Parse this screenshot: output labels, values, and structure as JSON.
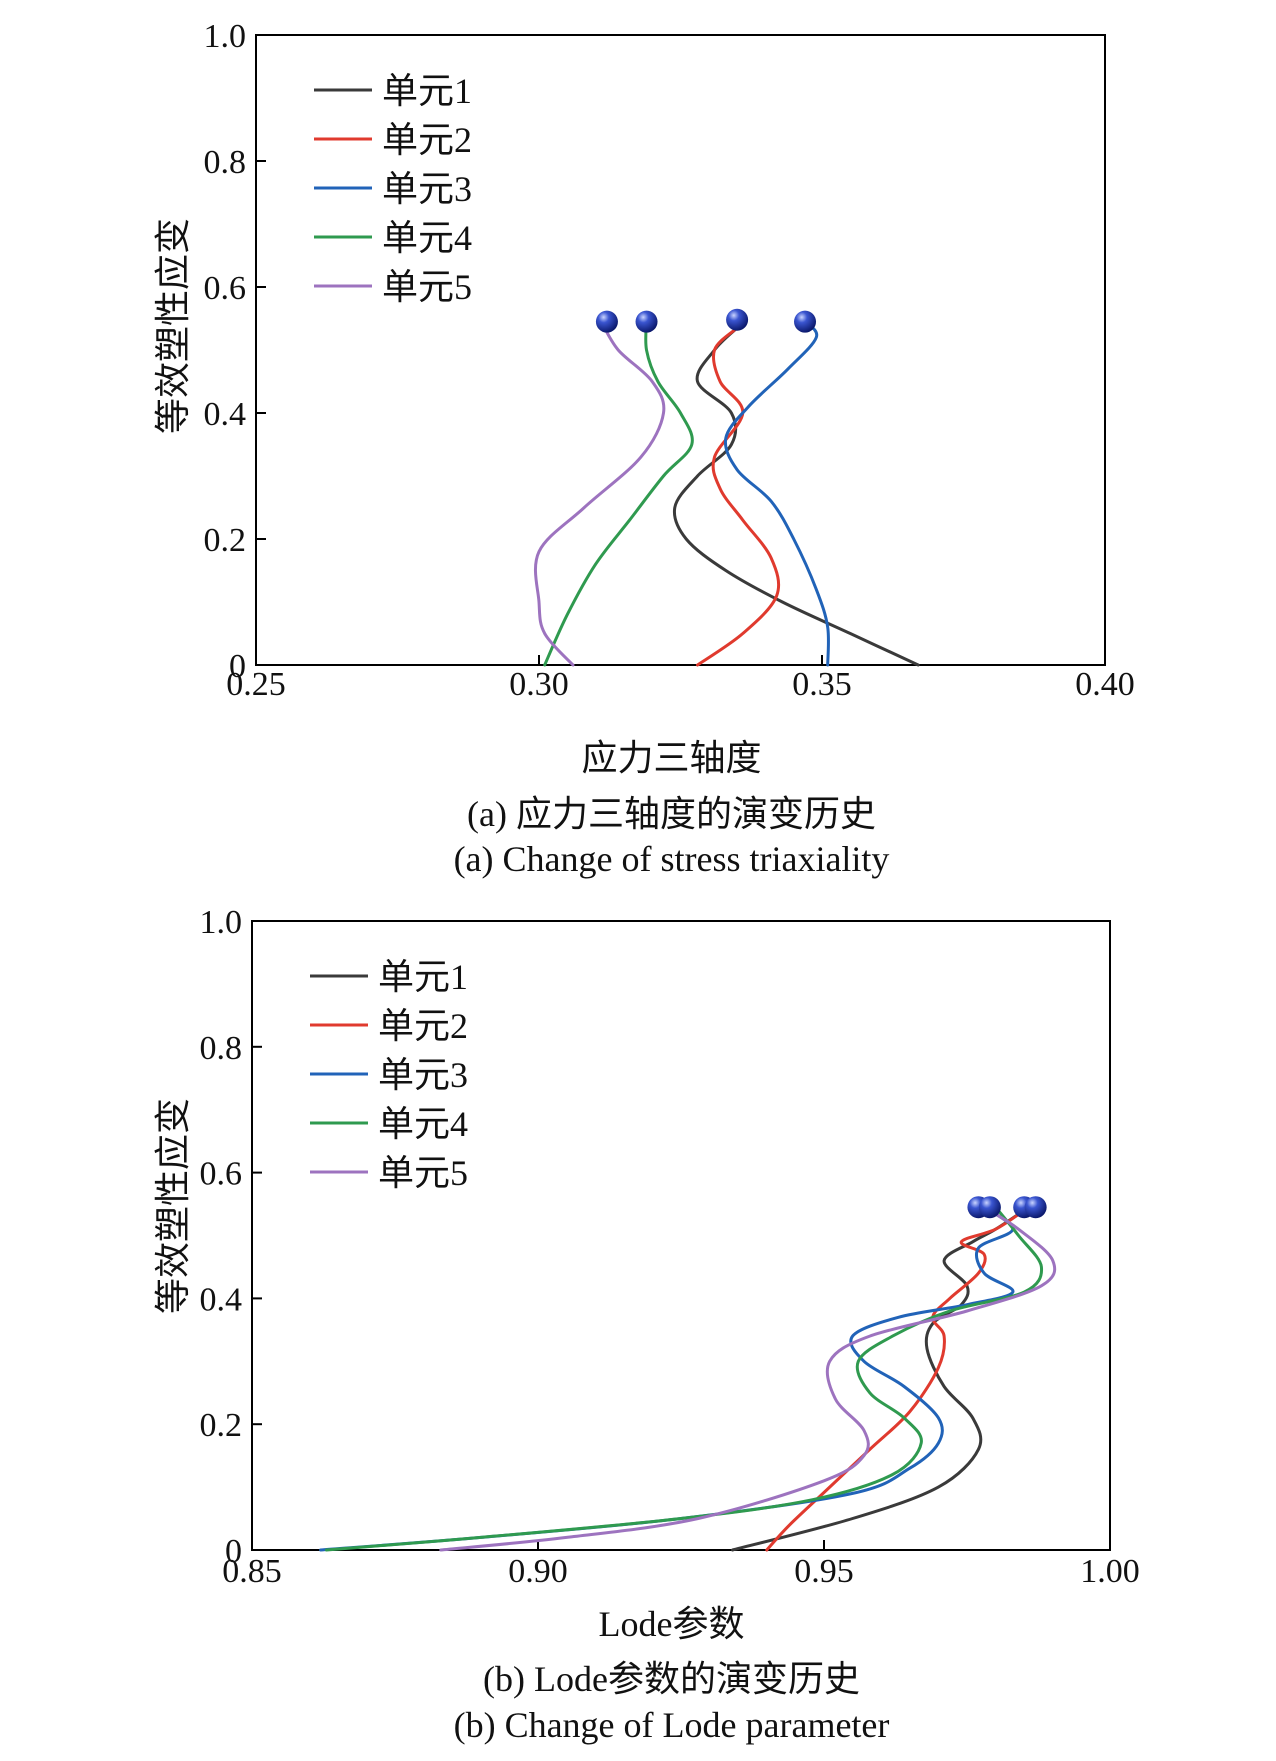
{
  "chart_data": [
    {
      "type": "line",
      "title": "",
      "xlabel": "应力三轴度",
      "ylabel": "等效塑性应变",
      "caption_cn": "(a) 应力三轴度的演变历史",
      "caption_en": "(a) Change of stress triaxiality",
      "xlim": [
        0.25,
        0.4
      ],
      "ylim": [
        0,
        1.0
      ],
      "xticks": [
        "0.25",
        "0.30",
        "0.35",
        "0.40"
      ],
      "yticks": [
        "0",
        "0.2",
        "0.4",
        "0.6",
        "0.8",
        "1.0"
      ],
      "grid": false,
      "legend": "top-left",
      "series": [
        {
          "name": "单元1",
          "color": "#3a3a3a",
          "points": [
            [
              0.367,
              0
            ],
            [
              0.355,
              0.05
            ],
            [
              0.343,
              0.1
            ],
            [
              0.333,
              0.15
            ],
            [
              0.326,
              0.2
            ],
            [
              0.324,
              0.25
            ],
            [
              0.328,
              0.3
            ],
            [
              0.334,
              0.35
            ],
            [
              0.334,
              0.4
            ],
            [
              0.328,
              0.45
            ],
            [
              0.331,
              0.5
            ],
            [
              0.335,
              0.535
            ]
          ]
        },
        {
          "name": "单元2",
          "color": "#e03a2e",
          "points": [
            [
              0.328,
              0
            ],
            [
              0.336,
              0.05
            ],
            [
              0.342,
              0.11
            ],
            [
              0.341,
              0.17
            ],
            [
              0.336,
              0.23
            ],
            [
              0.332,
              0.28
            ],
            [
              0.331,
              0.33
            ],
            [
              0.336,
              0.4
            ],
            [
              0.332,
              0.45
            ],
            [
              0.331,
              0.5
            ],
            [
              0.335,
              0.535
            ]
          ]
        },
        {
          "name": "单元3",
          "color": "#2163b8",
          "points": [
            [
              0.351,
              0
            ],
            [
              0.351,
              0.06
            ],
            [
              0.349,
              0.12
            ],
            [
              0.345,
              0.2
            ],
            [
              0.341,
              0.26
            ],
            [
              0.335,
              0.31
            ],
            [
              0.333,
              0.36
            ],
            [
              0.337,
              0.41
            ],
            [
              0.344,
              0.47
            ],
            [
              0.349,
              0.52
            ],
            [
              0.347,
              0.545
            ]
          ]
        },
        {
          "name": "单元4",
          "color": "#2f9a4f",
          "points": [
            [
              0.301,
              0
            ],
            [
              0.305,
              0.08
            ],
            [
              0.31,
              0.16
            ],
            [
              0.316,
              0.23
            ],
            [
              0.322,
              0.3
            ],
            [
              0.327,
              0.35
            ],
            [
              0.325,
              0.4
            ],
            [
              0.321,
              0.45
            ],
            [
              0.319,
              0.5
            ],
            [
              0.319,
              0.545
            ]
          ]
        },
        {
          "name": "单元5",
          "color": "#9d73bf",
          "points": [
            [
              0.306,
              0
            ],
            [
              0.301,
              0.05
            ],
            [
              0.3,
              0.1
            ],
            [
              0.3,
              0.18
            ],
            [
              0.308,
              0.25
            ],
            [
              0.318,
              0.33
            ],
            [
              0.322,
              0.4
            ],
            [
              0.32,
              0.45
            ],
            [
              0.314,
              0.5
            ],
            [
              0.311,
              0.545
            ]
          ]
        }
      ],
      "markers": [
        [
          0.312,
          0.545
        ],
        [
          0.319,
          0.545
        ],
        [
          0.335,
          0.548
        ],
        [
          0.347,
          0.545
        ]
      ]
    },
    {
      "type": "line",
      "title": "",
      "xlabel": "Lode参数",
      "ylabel": "等效塑性应变",
      "caption_cn": "(b) Lode参数的演变历史",
      "caption_en": "(b) Change of Lode parameter",
      "xlim": [
        0.85,
        1.0
      ],
      "ylim": [
        0,
        1.0
      ],
      "xticks": [
        "0.85",
        "0.90",
        "0.95",
        "1.00"
      ],
      "yticks": [
        "0",
        "0.2",
        "0.4",
        "0.6",
        "0.8",
        "1.0"
      ],
      "grid": false,
      "legend": "top-left",
      "series": [
        {
          "name": "单元1",
          "color": "#3a3a3a",
          "points": [
            [
              0.934,
              0
            ],
            [
              0.955,
              0.05
            ],
            [
              0.97,
              0.1
            ],
            [
              0.977,
              0.16
            ],
            [
              0.976,
              0.21
            ],
            [
              0.971,
              0.26
            ],
            [
              0.968,
              0.32
            ],
            [
              0.969,
              0.36
            ],
            [
              0.974,
              0.39
            ],
            [
              0.975,
              0.42
            ],
            [
              0.971,
              0.46
            ],
            [
              0.976,
              0.49
            ],
            [
              0.98,
              0.51
            ],
            [
              0.985,
              0.54
            ]
          ]
        },
        {
          "name": "单元2",
          "color": "#e03a2e",
          "points": [
            [
              0.94,
              0
            ],
            [
              0.944,
              0.04
            ],
            [
              0.951,
              0.1
            ],
            [
              0.958,
              0.16
            ],
            [
              0.965,
              0.22
            ],
            [
              0.97,
              0.29
            ],
            [
              0.971,
              0.34
            ],
            [
              0.969,
              0.37
            ],
            [
              0.972,
              0.4
            ],
            [
              0.977,
              0.44
            ],
            [
              0.978,
              0.47
            ],
            [
              0.974,
              0.49
            ],
            [
              0.98,
              0.51
            ],
            [
              0.985,
              0.54
            ]
          ]
        },
        {
          "name": "单元3",
          "color": "#2163b8",
          "points": [
            [
              0.862,
              0
            ],
            [
              0.89,
              0.02
            ],
            [
              0.925,
              0.05
            ],
            [
              0.955,
              0.09
            ],
            [
              0.965,
              0.13
            ],
            [
              0.97,
              0.17
            ],
            [
              0.97,
              0.21
            ],
            [
              0.964,
              0.26
            ],
            [
              0.957,
              0.3
            ],
            [
              0.955,
              0.34
            ],
            [
              0.963,
              0.37
            ],
            [
              0.975,
              0.39
            ],
            [
              0.983,
              0.41
            ],
            [
              0.978,
              0.44
            ],
            [
              0.977,
              0.48
            ],
            [
              0.983,
              0.51
            ],
            [
              0.978,
              0.545
            ]
          ]
        },
        {
          "name": "单元4",
          "color": "#2f9a4f",
          "points": [
            [
              0.863,
              0
            ],
            [
              0.89,
              0.02
            ],
            [
              0.925,
              0.05
            ],
            [
              0.948,
              0.08
            ],
            [
              0.962,
              0.12
            ],
            [
              0.967,
              0.17
            ],
            [
              0.964,
              0.21
            ],
            [
              0.958,
              0.25
            ],
            [
              0.956,
              0.3
            ],
            [
              0.962,
              0.34
            ],
            [
              0.972,
              0.38
            ],
            [
              0.985,
              0.41
            ],
            [
              0.988,
              0.45
            ],
            [
              0.984,
              0.5
            ],
            [
              0.98,
              0.545
            ]
          ]
        },
        {
          "name": "单元5",
          "color": "#9d73bf",
          "points": [
            [
              0.883,
              0
            ],
            [
              0.905,
              0.02
            ],
            [
              0.928,
              0.05
            ],
            [
              0.95,
              0.11
            ],
            [
              0.957,
              0.15
            ],
            [
              0.957,
              0.19
            ],
            [
              0.952,
              0.24
            ],
            [
              0.951,
              0.3
            ],
            [
              0.958,
              0.34
            ],
            [
              0.975,
              0.38
            ],
            [
              0.988,
              0.42
            ],
            [
              0.99,
              0.46
            ],
            [
              0.984,
              0.51
            ],
            [
              0.978,
              0.545
            ]
          ]
        }
      ],
      "markers": [
        [
          0.977,
          0.545
        ],
        [
          0.979,
          0.545
        ],
        [
          0.985,
          0.545
        ],
        [
          0.987,
          0.545
        ]
      ]
    }
  ]
}
